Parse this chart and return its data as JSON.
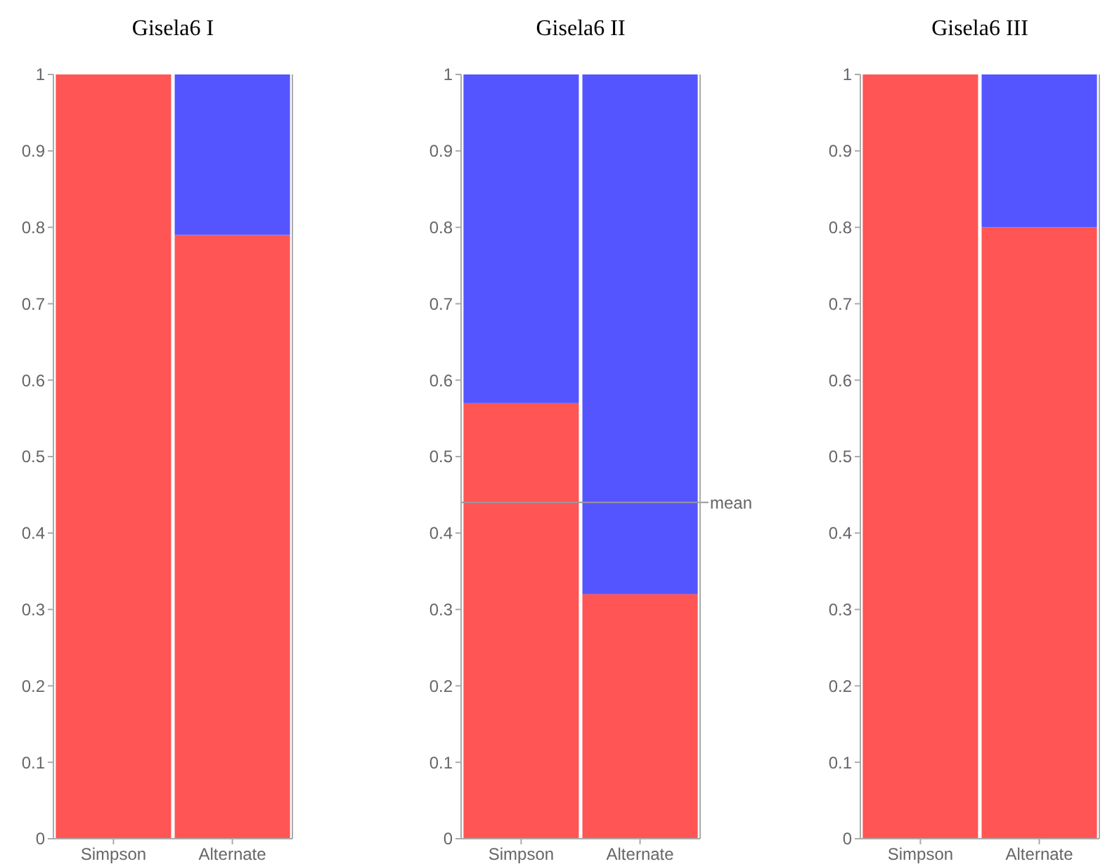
{
  "chart_data": [
    {
      "type": "bar",
      "title": "Gisela6 I",
      "categories": [
        "Simpson",
        "Alternate"
      ],
      "stacked": true,
      "ylim": [
        0,
        1
      ],
      "yticks": [
        0,
        0.1,
        0.2,
        0.3,
        0.4,
        0.5,
        0.6,
        0.7,
        0.8,
        0.9,
        1
      ],
      "series": [
        {
          "color": "#ff5555",
          "values": [
            1,
            0.79
          ]
        },
        {
          "color": "#5555ff",
          "values": [
            0,
            0.21
          ]
        }
      ]
    },
    {
      "type": "bar",
      "title": "Gisela6 II",
      "categories": [
        "Simpson",
        "Alternate"
      ],
      "stacked": true,
      "ylim": [
        0,
        1
      ],
      "yticks": [
        0,
        0.1,
        0.2,
        0.3,
        0.4,
        0.5,
        0.6,
        0.7,
        0.8,
        0.9,
        1
      ],
      "series": [
        {
          "color": "#ff5555",
          "values": [
            0.57,
            0.32
          ]
        },
        {
          "color": "#5555ff",
          "values": [
            0.43,
            0.68
          ]
        }
      ],
      "ref_lines": [
        {
          "axis": "y",
          "value": 0.44,
          "label": "mean",
          "color": "#999999"
        }
      ]
    },
    {
      "type": "bar",
      "title": "Gisela6 III",
      "categories": [
        "Simpson",
        "Alternate"
      ],
      "stacked": true,
      "ylim": [
        0,
        1
      ],
      "yticks": [
        0,
        0.1,
        0.2,
        0.3,
        0.4,
        0.5,
        0.6,
        0.7,
        0.8,
        0.9,
        1
      ],
      "series": [
        {
          "color": "#ff5555",
          "values": [
            1,
            0.8
          ]
        },
        {
          "color": "#5555ff",
          "values": [
            0,
            0.2
          ]
        }
      ]
    }
  ]
}
